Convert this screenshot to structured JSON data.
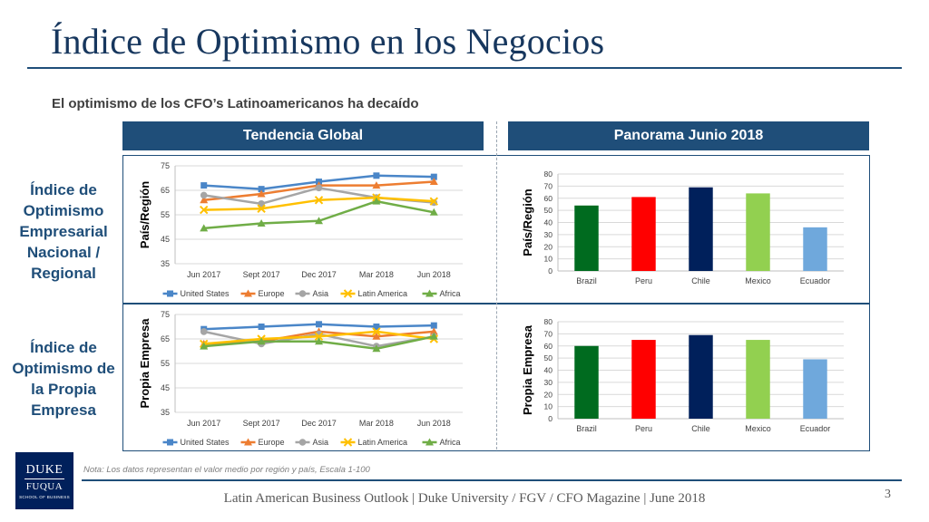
{
  "page": {
    "title": "Índice de Optimismo en los Negocios",
    "subtitle": "El optimismo de los CFO’s Latinoamericanos ha decaído",
    "columns": {
      "left": "Tendencia Global",
      "right": "Panorama Junio 2018"
    },
    "rows": {
      "top": "Índice de Optimismo Empresarial Nacional / Regional",
      "bottom": "Índice de Optimismo de la Propia Empresa"
    },
    "note": "Nota: Los datos representan el valor medio por región y país, Escala 1-100",
    "footer": "Latin American Business Outlook | Duke University / FGV / CFO Magazine | June 2018",
    "page_number": "3",
    "logo": {
      "line1": "DUKE",
      "line2": "FUQUA",
      "line3": "SCHOOL OF BUSINESS"
    }
  },
  "colors": {
    "header_bg": "#1f4e79",
    "United States": "#4a86c8",
    "Europe": "#ed7d31",
    "Asia": "#a5a5a5",
    "Latin America": "#ffc000",
    "Africa": "#70ad47",
    "Brazil": "#006b1f",
    "Peru": "#ff0000",
    "Chile": "#00205b",
    "Mexico": "#92d050",
    "Ecuador": "#6fa8dc"
  },
  "chart_data": [
    {
      "id": "trend-national",
      "type": "line",
      "ylabel": "País/Región",
      "ylim": [
        35,
        75
      ],
      "yticks": [
        35,
        45,
        55,
        65,
        75
      ],
      "categories": [
        "Jun 2017",
        "Sept 2017",
        "Dec 2017",
        "Mar 2018",
        "Jun 2018"
      ],
      "legend": "bottom",
      "series": [
        {
          "name": "United States",
          "marker": "square",
          "values": [
            67,
            65.5,
            68.5,
            71,
            70.5
          ]
        },
        {
          "name": "Europe",
          "marker": "triangle",
          "values": [
            61,
            63.5,
            67,
            67,
            68.5
          ]
        },
        {
          "name": "Asia",
          "marker": "circle",
          "values": [
            63,
            59.5,
            66,
            62,
            60
          ]
        },
        {
          "name": "Latin America",
          "marker": "x",
          "values": [
            57,
            57.5,
            61,
            62,
            60.5
          ]
        },
        {
          "name": "Africa",
          "marker": "triangle",
          "values": [
            49.5,
            51.5,
            52.5,
            60.5,
            56
          ]
        }
      ]
    },
    {
      "id": "trend-own",
      "type": "line",
      "ylabel": "Propia Empresa",
      "ylim": [
        35,
        75
      ],
      "yticks": [
        35,
        45,
        55,
        65,
        75
      ],
      "categories": [
        "Jun 2017",
        "Sept 2017",
        "Dec 2017",
        "Mar 2018",
        "Jun 2018"
      ],
      "legend": "bottom",
      "series": [
        {
          "name": "United States",
          "marker": "square",
          "values": [
            69,
            70,
            71,
            70,
            70.5
          ]
        },
        {
          "name": "Europe",
          "marker": "triangle",
          "values": [
            63,
            64,
            68,
            66,
            68
          ]
        },
        {
          "name": "Asia",
          "marker": "circle",
          "values": [
            68,
            63,
            67,
            62,
            66
          ]
        },
        {
          "name": "Latin America",
          "marker": "x",
          "values": [
            63,
            65,
            66,
            68,
            65
          ]
        },
        {
          "name": "Africa",
          "marker": "triangle",
          "values": [
            62,
            64,
            64,
            61,
            66
          ]
        }
      ]
    },
    {
      "id": "panorama-national",
      "type": "bar",
      "ylabel": "País/Región",
      "ylim": [
        0,
        80
      ],
      "yticks": [
        0,
        10,
        20,
        30,
        40,
        50,
        60,
        70,
        80
      ],
      "categories": [
        "Brazil",
        "Peru",
        "Chile",
        "Mexico",
        "Ecuador"
      ],
      "values": [
        54,
        61,
        69,
        64,
        36
      ]
    },
    {
      "id": "panorama-own",
      "type": "bar",
      "ylabel": "Propia Empresa",
      "ylim": [
        0,
        80
      ],
      "yticks": [
        0,
        10,
        20,
        30,
        40,
        50,
        60,
        70,
        80
      ],
      "categories": [
        "Brazil",
        "Peru",
        "Chile",
        "Mexico",
        "Ecuador"
      ],
      "values": [
        60,
        65,
        69,
        65,
        49
      ]
    }
  ]
}
